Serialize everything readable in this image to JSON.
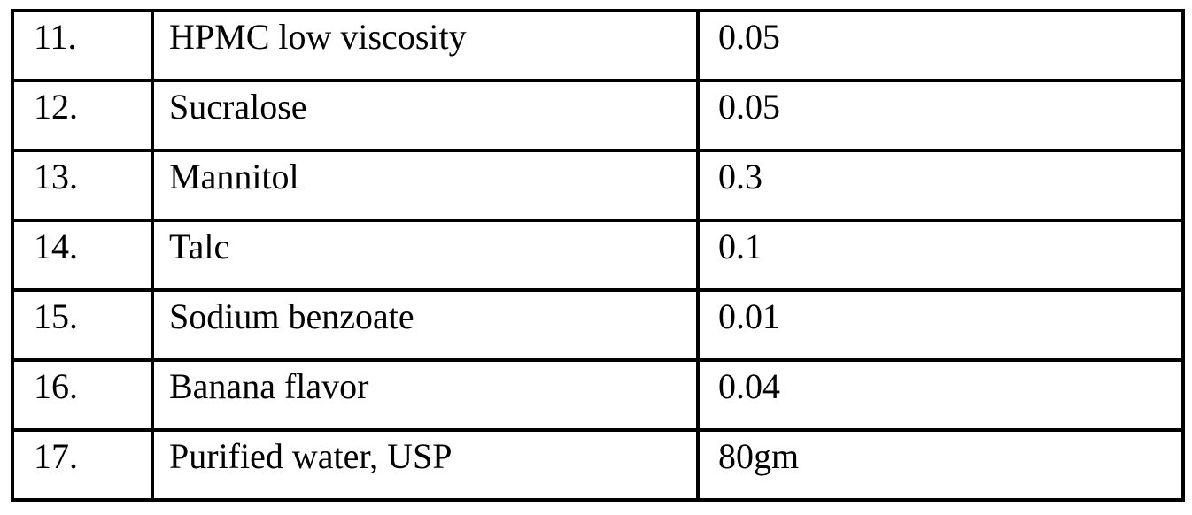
{
  "document": {
    "type": "formulation-ingredients-table",
    "colors": {
      "background": "#ffffff",
      "border": "#000000",
      "text": "#000000"
    }
  },
  "table": {
    "columns": [
      "serial_number",
      "ingredient",
      "quantity"
    ],
    "rows": [
      {
        "num": "11.",
        "ingredient": "HPMC low viscosity",
        "value": "0.05"
      },
      {
        "num": "12.",
        "ingredient": "Sucralose",
        "value": "0.05"
      },
      {
        "num": "13.",
        "ingredient": "Mannitol",
        "value": "0.3"
      },
      {
        "num": "14.",
        "ingredient": "Talc",
        "value": "0.1"
      },
      {
        "num": "15.",
        "ingredient": "Sodium benzoate",
        "value": "0.01"
      },
      {
        "num": "16.",
        "ingredient": "Banana flavor",
        "value": "0.04"
      },
      {
        "num": "17.",
        "ingredient": "Purified water, USP",
        "value": "80gm"
      }
    ]
  }
}
